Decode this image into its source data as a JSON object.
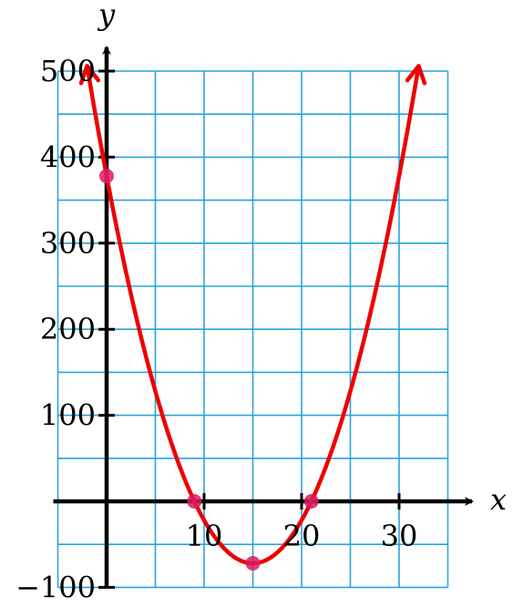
{
  "chart_data": {
    "type": "line",
    "xlabel": "x",
    "ylabel": "y",
    "xlim": [
      -5,
      35
    ],
    "ylim": [
      -100,
      500
    ],
    "grid": true,
    "grid_x_step": 5,
    "grid_y_step": 50,
    "x_ticks": [
      10,
      20,
      30
    ],
    "y_ticks": [
      -100,
      100,
      200,
      300,
      400,
      500
    ],
    "x_tick_labels": [
      "10",
      "20",
      "30"
    ],
    "y_tick_labels": [
      "−100",
      "100",
      "200",
      "300",
      "400",
      "500"
    ],
    "series": [
      {
        "x_range": [
          -2,
          32
        ],
        "vertex": [
          15,
          -72
        ],
        "points": [
          {
            "x": 0,
            "y": 378
          },
          {
            "x": 9,
            "y": 0
          },
          {
            "x": 15,
            "y": -72
          },
          {
            "x": 21,
            "y": 0
          }
        ]
      }
    ],
    "colors": {
      "curve": "#ee0000",
      "points": "#d81b60",
      "grid": "#29a3dc",
      "axis": "#000000"
    }
  }
}
